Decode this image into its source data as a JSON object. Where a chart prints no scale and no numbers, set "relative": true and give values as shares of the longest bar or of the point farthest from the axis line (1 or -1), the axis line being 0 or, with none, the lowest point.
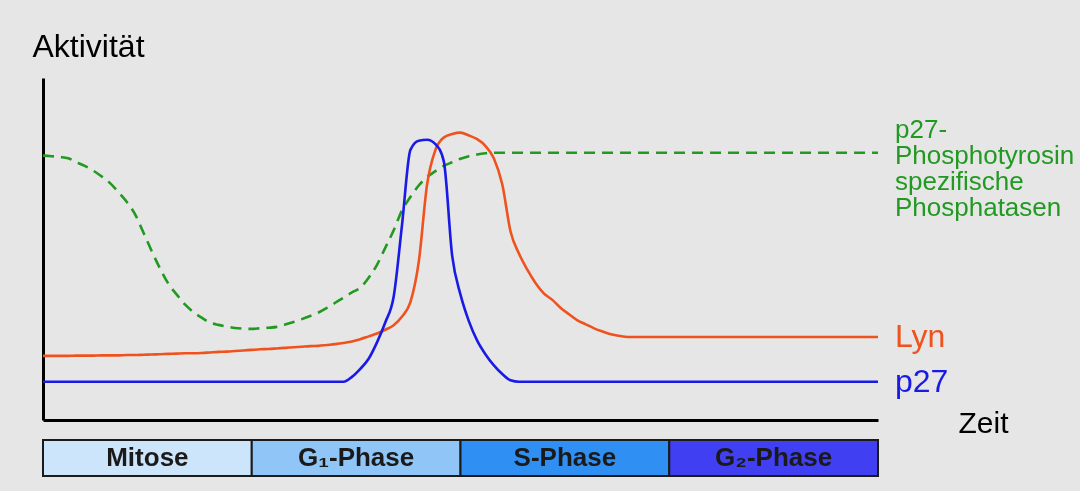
{
  "chart_data": [
    {
      "type": "line",
      "relative": true,
      "ylabel": "Aktivität",
      "xlabel": "Zeit",
      "legend": false,
      "grid": false,
      "line_style": "solid",
      "categories": [
        null,
        null,
        null,
        null,
        null,
        null,
        null,
        null,
        null,
        null,
        null,
        null,
        null,
        null,
        null,
        null,
        null,
        null,
        null,
        null,
        null,
        null,
        null,
        null,
        null,
        null,
        null,
        null,
        null,
        null,
        null,
        null,
        null,
        null,
        null,
        null,
        null,
        null,
        null,
        null,
        null,
        null,
        null,
        null,
        null,
        null,
        null,
        null,
        null,
        null,
        null,
        null,
        null,
        null,
        null,
        null,
        null,
        null,
        null,
        null,
        null,
        null,
        null,
        null,
        null,
        null,
        null,
        null,
        null,
        null,
        null,
        null,
        null,
        null,
        null,
        null,
        null,
        null,
        null,
        null,
        null,
        null,
        null,
        null,
        null,
        null,
        null,
        null,
        null,
        null,
        null,
        null,
        null,
        null,
        null,
        null,
        null,
        null,
        null,
        null,
        null
      ],
      "series": [
        {
          "name": "p27-Phosphotyrosin spezifische Phosphatasen",
          "color": "#229922",
          "line_style": "dashed",
          "values": [
            0.92,
            0.918,
            0.915,
            0.911,
            0.897,
            0.884,
            0.868,
            0.848,
            0.825,
            0.794,
            0.76,
            0.717,
            0.654,
            0.589,
            0.528,
            0.475,
            0.437,
            0.402,
            0.376,
            0.356,
            0.339,
            0.331,
            0.325,
            0.32,
            0.318,
            0.317,
            0.319,
            0.321,
            0.324,
            0.332,
            0.341,
            0.351,
            0.362,
            0.374,
            0.39,
            0.408,
            0.426,
            0.444,
            0.46,
            0.495,
            0.54,
            0.6,
            0.66,
            0.73,
            0.776,
            0.816,
            0.845,
            0.866,
            0.884,
            0.897,
            0.909,
            0.918,
            0.924,
            0.928,
            0.93,
            0.93,
            0.93,
            0.93,
            0.93,
            0.93,
            0.93,
            0.93,
            0.93,
            0.93,
            0.93,
            0.93,
            0.93,
            0.93,
            0.93,
            0.93,
            0.93,
            0.93,
            0.93,
            0.93,
            0.93,
            0.93,
            0.93,
            0.93,
            0.93,
            0.93,
            0.93,
            0.93,
            0.93,
            0.93,
            0.93,
            0.93,
            0.93,
            0.93,
            0.93,
            0.93,
            0.93,
            0.93,
            0.93,
            0.93,
            0.93,
            0.93,
            0.93,
            0.93,
            0.93,
            0.93,
            0.93
          ]
        },
        {
          "name": "Lyn",
          "color": "#f0521e",
          "values": [
            0.223,
            0.223,
            0.223,
            0.223,
            0.224,
            0.224,
            0.224,
            0.225,
            0.225,
            0.225,
            0.226,
            0.226,
            0.227,
            0.228,
            0.229,
            0.23,
            0.231,
            0.232,
            0.232,
            0.233,
            0.235,
            0.237,
            0.238,
            0.24,
            0.242,
            0.244,
            0.246,
            0.247,
            0.249,
            0.251,
            0.253,
            0.255,
            0.257,
            0.258,
            0.261,
            0.264,
            0.268,
            0.273,
            0.281,
            0.291,
            0.301,
            0.314,
            0.33,
            0.36,
            0.41,
            0.55,
            0.82,
            0.94,
            0.983,
            0.995,
            1,
            0.99,
            0.977,
            0.953,
            0.91,
            0.82,
            0.655,
            0.579,
            0.523,
            0.476,
            0.44,
            0.418,
            0.39,
            0.368,
            0.347,
            0.333,
            0.319,
            0.308,
            0.298,
            0.293,
            0.289,
            0.289,
            0.289,
            0.289,
            0.289,
            0.289,
            0.289,
            0.289,
            0.289,
            0.289,
            0.289,
            0.289,
            0.289,
            0.289,
            0.289,
            0.289,
            0.289,
            0.289,
            0.289,
            0.289,
            0.289,
            0.289,
            0.289,
            0.289,
            0.289,
            0.289,
            0.289,
            0.289,
            0.289,
            0.289,
            0.289
          ]
        },
        {
          "name": "p27",
          "color": "#1a1ae6",
          "values": [
            0.133,
            0.133,
            0.133,
            0.133,
            0.133,
            0.133,
            0.133,
            0.133,
            0.133,
            0.133,
            0.133,
            0.133,
            0.133,
            0.133,
            0.133,
            0.133,
            0.133,
            0.133,
            0.133,
            0.133,
            0.133,
            0.133,
            0.133,
            0.133,
            0.133,
            0.133,
            0.133,
            0.133,
            0.133,
            0.133,
            0.133,
            0.133,
            0.133,
            0.133,
            0.133,
            0.133,
            0.133,
            0.15,
            0.178,
            0.213,
            0.27,
            0.34,
            0.43,
            0.68,
            0.94,
            0.972,
            0.975,
            0.96,
            0.9,
            0.572,
            0.436,
            0.344,
            0.276,
            0.228,
            0.19,
            0.16,
            0.138,
            0.133,
            0.133,
            0.133,
            0.133,
            0.133,
            0.133,
            0.133,
            0.133,
            0.133,
            0.133,
            0.133,
            0.133,
            0.133,
            0.133,
            0.133,
            0.133,
            0.133,
            0.133,
            0.133,
            0.133,
            0.133,
            0.133,
            0.133,
            0.133,
            0.133,
            0.133,
            0.133,
            0.133,
            0.133,
            0.133,
            0.133,
            0.133,
            0.133,
            0.133,
            0.133,
            0.133,
            0.133,
            0.133,
            0.133,
            0.133,
            0.133,
            0.133,
            0.133,
            0.133
          ]
        }
      ]
    },
    {
      "type": "other",
      "categories": [
        "Mitose",
        "G₁-Phase",
        "S-Phase",
        "G₂-Phase"
      ],
      "colors": [
        "#cde5fb",
        "#8fc5f7",
        "#2f8ff2",
        "#4040f2"
      ]
    }
  ]
}
